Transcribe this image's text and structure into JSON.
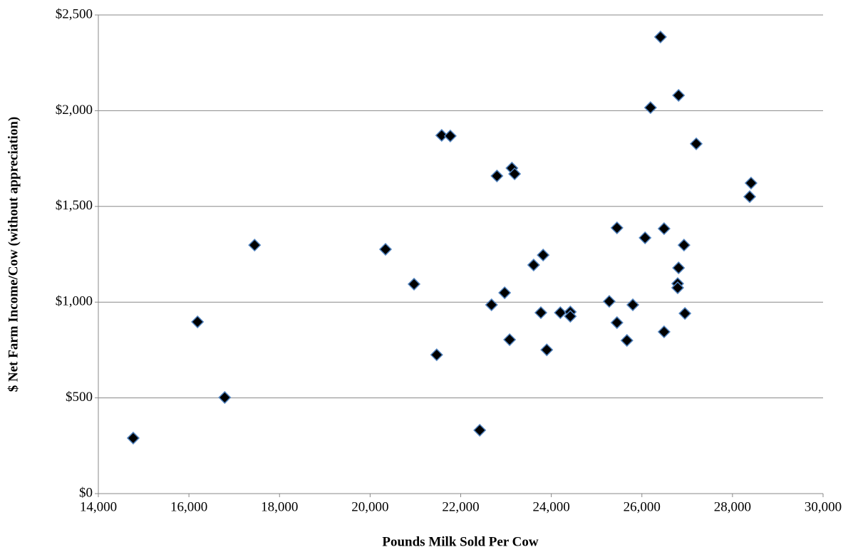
{
  "chart_data": {
    "type": "scatter",
    "x_label": "Pounds Milk Sold Per Cow",
    "y_label": "$ Net Farm Income/Cow (without appreciation)",
    "color": "#000000",
    "edge_color": "#4f81bd",
    "grid": true,
    "xlim": [
      14000,
      30000
    ],
    "xticks": [
      {
        "value": 14000,
        "label": "14,000"
      },
      {
        "value": 16000,
        "label": "16,000"
      },
      {
        "value": 18000,
        "label": "18,000"
      },
      {
        "value": 20000,
        "label": "20,000"
      },
      {
        "value": 22000,
        "label": "22,000"
      },
      {
        "value": 24000,
        "label": "24,000"
      },
      {
        "value": 26000,
        "label": "26,000"
      },
      {
        "value": 28000,
        "label": "28,000"
      },
      {
        "value": 30000,
        "label": "30,000"
      }
    ],
    "ylim": [
      0,
      2500
    ],
    "yticks": [
      {
        "value": 0,
        "label": "$0"
      },
      {
        "value": 500,
        "label": "$500"
      },
      {
        "value": 1000,
        "label": "$1,000"
      },
      {
        "value": 1500,
        "label": "$1,500"
      },
      {
        "value": 2000,
        "label": "$2,000"
      },
      {
        "value": 2500,
        "label": "$2,500"
      }
    ],
    "x": [
      14770,
      16190,
      16790,
      17450,
      20340,
      20970,
      21470,
      21580,
      21770,
      22420,
      22680,
      22800,
      22970,
      23080,
      23130,
      23190,
      23610,
      23770,
      23820,
      23900,
      24200,
      24420,
      24420,
      25280,
      25450,
      25450,
      25670,
      25800,
      26070,
      26190,
      26410,
      26490,
      26490,
      26790,
      26810,
      26810,
      26790,
      26930,
      26950,
      27200,
      28380,
      28410
    ],
    "values": [
      290,
      897,
      502,
      1298,
      1276,
      1094,
      725,
      1871,
      1868,
      331,
      986,
      1659,
      1049,
      804,
      1700,
      1670,
      1194,
      945,
      1246,
      751,
      945,
      949,
      926,
      1004,
      1388,
      893,
      800,
      986,
      1336,
      2016,
      2385,
      845,
      1384,
      1097,
      2080,
      1179,
      1075,
      1298,
      941,
      1827,
      1551,
      1622
    ]
  }
}
